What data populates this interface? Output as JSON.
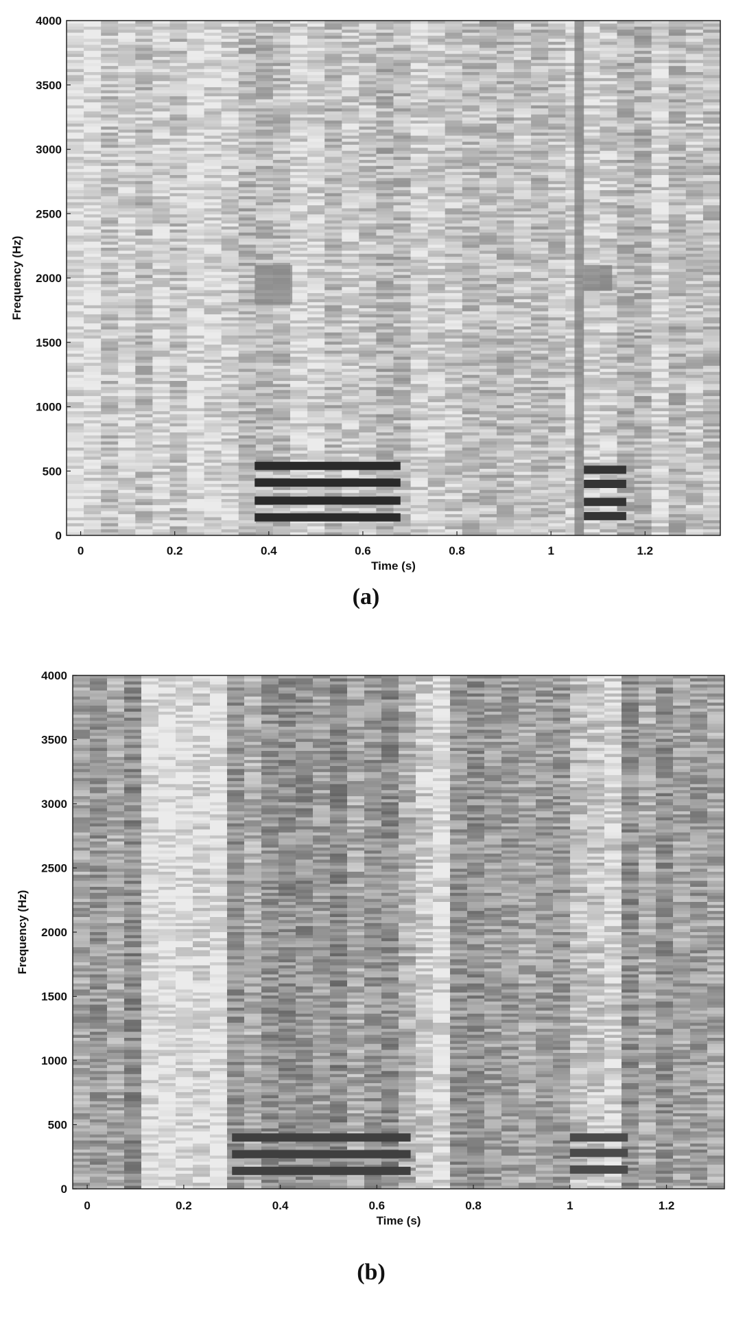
{
  "chart_data": [
    {
      "type": "heatmap",
      "panel_label": "(a)",
      "xlabel": "Time (s)",
      "ylabel": "Frequency (Hz)",
      "xlim": [
        -0.03,
        1.36
      ],
      "ylim": [
        0,
        4000
      ],
      "xticks": [
        0,
        0.2,
        0.4,
        0.6,
        0.8,
        1,
        1.2
      ],
      "xtick_labels": [
        "0",
        "0.2",
        "0.4",
        "0.6",
        "0.8",
        "1",
        "1.2"
      ],
      "yticks": [
        0,
        500,
        1000,
        1500,
        2000,
        2500,
        3000,
        3500,
        4000
      ],
      "ytick_labels": [
        "0",
        "500",
        "1000",
        "1500",
        "2000",
        "2500",
        "3000",
        "3500",
        "4000"
      ],
      "colormap": "grayscale",
      "background_intensity": 0.2,
      "harmonic_events": [
        {
          "t_start": 0.37,
          "t_end": 0.68,
          "frequencies": [
            140,
            270,
            410,
            540
          ],
          "intensity": 0.9
        },
        {
          "t_start": 1.07,
          "t_end": 1.16,
          "frequencies": [
            150,
            260,
            400,
            510
          ],
          "intensity": 0.85
        }
      ],
      "transient_events": [
        {
          "t_start": 1.05,
          "t_end": 1.07,
          "f_low": 0,
          "f_high": 4000,
          "intensity": 0.55
        },
        {
          "t_start": 0.37,
          "t_end": 0.45,
          "f_low": 1800,
          "f_high": 2100,
          "intensity": 0.5
        },
        {
          "t_start": 1.07,
          "t_end": 1.13,
          "f_low": 1900,
          "f_high": 2100,
          "intensity": 0.55
        }
      ]
    },
    {
      "type": "heatmap",
      "panel_label": "(b)",
      "xlabel": "Time (s)",
      "ylabel": "Frequency (Hz)",
      "xlim": [
        -0.03,
        1.32
      ],
      "ylim": [
        0,
        4000
      ],
      "xticks": [
        0,
        0.2,
        0.4,
        0.6,
        0.8,
        1,
        1.2
      ],
      "xtick_labels": [
        "0",
        "0.2",
        "0.4",
        "0.6",
        "0.8",
        "1",
        "1.2"
      ],
      "yticks": [
        0,
        500,
        1000,
        1500,
        2000,
        2500,
        3000,
        3500,
        4000
      ],
      "ytick_labels": [
        "0",
        "500",
        "1000",
        "1500",
        "2000",
        "2500",
        "3000",
        "3500",
        "4000"
      ],
      "colormap": "grayscale",
      "background_intensity": 0.45,
      "light_columns": [
        {
          "t_start": 0.1,
          "t_end": 0.28
        },
        {
          "t_start": 0.68,
          "t_end": 0.74
        },
        {
          "t_start": 1.0,
          "t_end": 1.1
        }
      ],
      "harmonic_events": [
        {
          "t_start": 0.3,
          "t_end": 0.67,
          "frequencies": [
            140,
            270,
            400
          ],
          "intensity": 0.8
        },
        {
          "t_start": 1.0,
          "t_end": 1.12,
          "frequencies": [
            150,
            280,
            400
          ],
          "intensity": 0.75
        }
      ]
    }
  ]
}
